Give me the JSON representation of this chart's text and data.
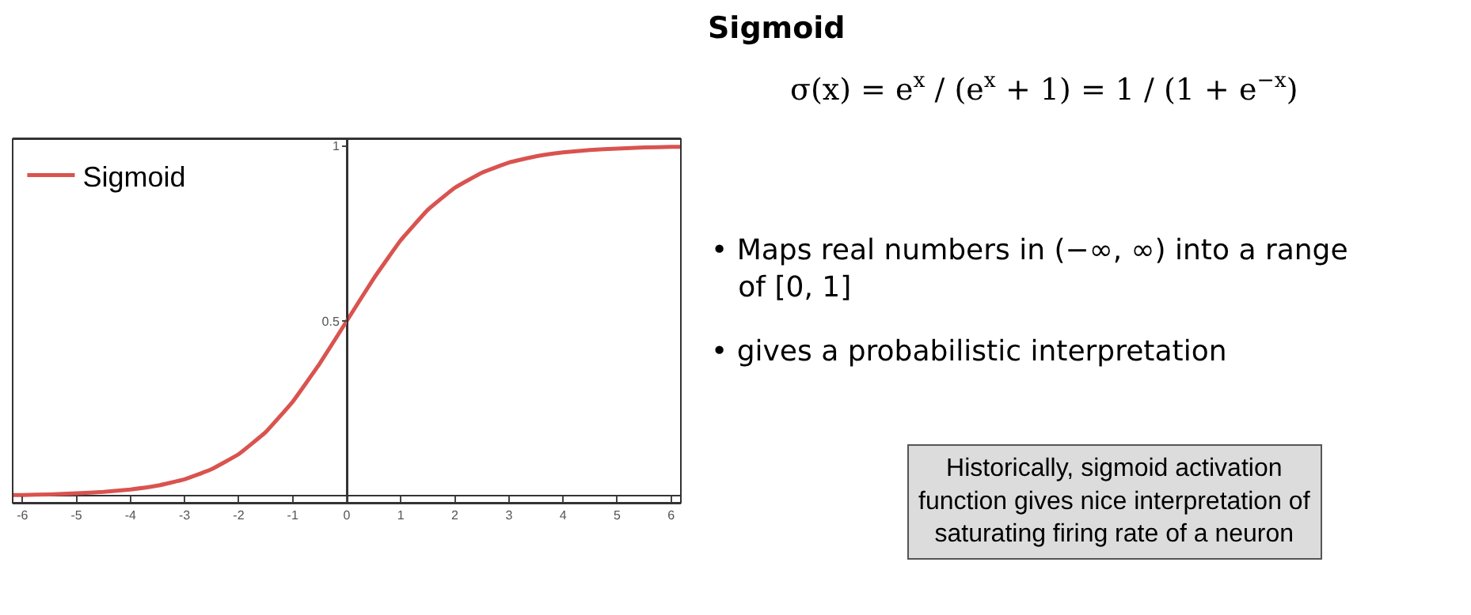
{
  "chart_data": {
    "type": "line",
    "title": "Sigmoid",
    "x": [
      -6.18,
      -6,
      -5.5,
      -5,
      -4.5,
      -4,
      -3.5,
      -3,
      -2.5,
      -2,
      -1.5,
      -1,
      -0.5,
      0,
      0.5,
      1,
      1.5,
      2,
      2.5,
      3,
      3.5,
      4,
      4.5,
      5,
      5.5,
      6,
      6.18
    ],
    "series": [
      {
        "name": "Sigmoid",
        "color": "#d9534f",
        "values": [
          0.002,
          0.002,
          0.004,
          0.007,
          0.011,
          0.018,
          0.029,
          0.047,
          0.076,
          0.119,
          0.182,
          0.269,
          0.378,
          0.5,
          0.622,
          0.731,
          0.818,
          0.881,
          0.924,
          0.953,
          0.971,
          0.982,
          0.989,
          0.993,
          0.996,
          0.998,
          0.998
        ]
      }
    ],
    "xlim": [
      -6.18,
      6.18
    ],
    "xticks": [
      -6,
      -5,
      -4,
      -3,
      -2,
      -1,
      0,
      1,
      2,
      3,
      4,
      5,
      6
    ],
    "ylim": [
      -0.02,
      1.02
    ],
    "yticks": [
      0.5,
      1
    ],
    "grid": false,
    "legend": "top left",
    "marker": "none",
    "line_style": "solid",
    "annotations": [
      "σ(x) = e$^{x}$ / (e$^{x}$ + 1) = 1 / (1 + e$^{−x}$)",
      "• Maps real numbers in (−∞, ∞) into a range\n   of [0, 1]",
      "• gives a probabilistic interpretation",
      "Historically, sigmoid activation\nfunction gives nice interpretation of\nsaturating firing rate of a neuron"
    ]
  }
}
